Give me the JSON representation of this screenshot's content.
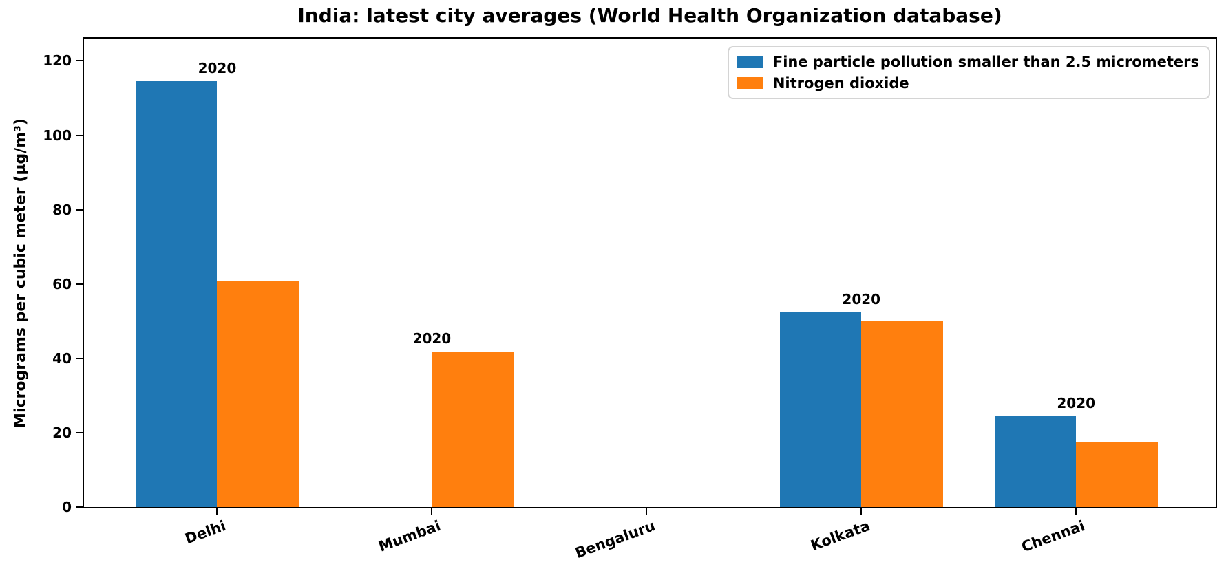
{
  "chart_data": {
    "type": "bar",
    "title": "India: latest city averages (World Health Organization database)",
    "xlabel": "",
    "ylabel": "Micrograms per cubic meter (µg/m³)",
    "categories": [
      "Delhi",
      "Mumbai",
      "Bengaluru",
      "Kolkata",
      "Chennai"
    ],
    "series": [
      {
        "name": "Fine particle pollution smaller than 2.5 micrometers",
        "color": "#1f77b4",
        "values": [
          114.5,
          null,
          null,
          52.3,
          24.5
        ]
      },
      {
        "name": "Nitrogen dioxide",
        "color": "#ff7f0e",
        "values": [
          60.8,
          41.9,
          null,
          50.2,
          17.3
        ]
      }
    ],
    "bar_group_labels": [
      "2020",
      "2020",
      null,
      "2020",
      "2020"
    ],
    "yticks": [
      0,
      20,
      40,
      60,
      80,
      100,
      120
    ],
    "ylim": [
      0,
      126
    ],
    "grid": false,
    "legend_position": "upper right"
  }
}
